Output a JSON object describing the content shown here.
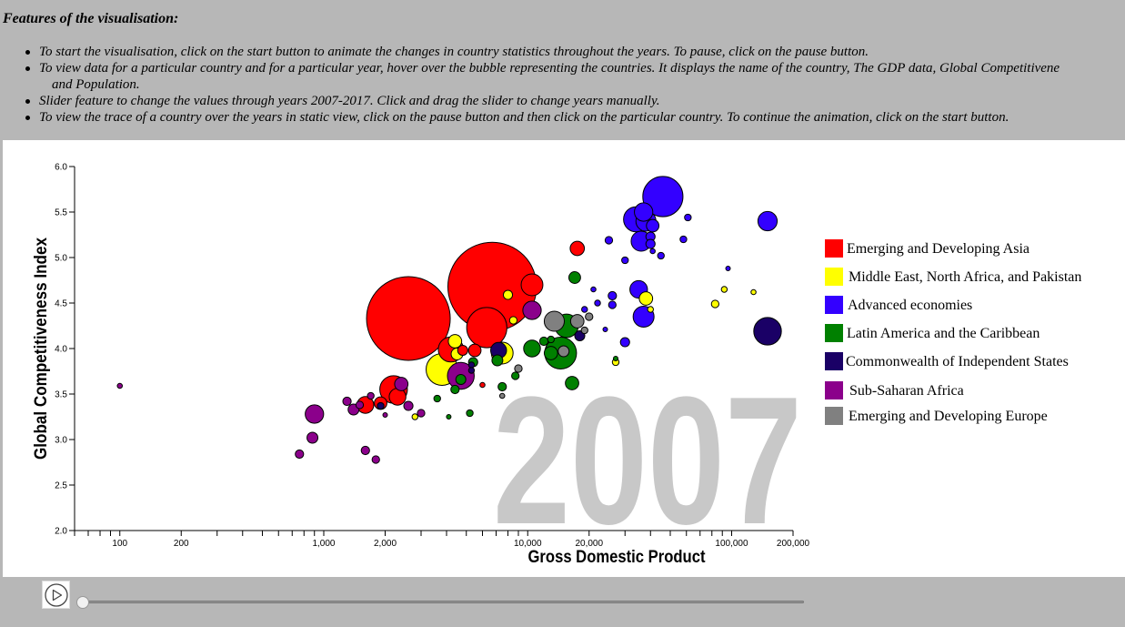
{
  "features": {
    "heading": "Features of the visualisation:",
    "items": [
      "To start the visualisation, click on the start button to animate the changes in country statistics throughout the years. To pause, click on the pause button.",
      "To view data for a particular country and for a particular year, hover over the bubble representing the countries. It displays the name of the country, The GDP data, Global Competitivene",
      "Slider feature to change the values through years 2007-2017. Click and drag the slider to change years manually.",
      "To view the trace of a country over the years in static view, click on the pause button and then click on the particular country. To continue the animation, click on the start button."
    ],
    "item2_continuation": "and Population."
  },
  "chart_data": {
    "type": "scatter",
    "year": "2007",
    "xlabel": "Gross Domestic Product",
    "ylabel": "Global Competitiveness Index",
    "x_scale": "log",
    "xlim": [
      60,
      200000
    ],
    "ylim": [
      2.0,
      6.0
    ],
    "x_tick_labels": [
      "100",
      "200",
      "1,000",
      "2,000",
      "10,000",
      "20,000",
      "100,000",
      "200,000"
    ],
    "x_tick_values": [
      100,
      200,
      1000,
      2000,
      10000,
      20000,
      100000,
      200000
    ],
    "y_tick_labels": [
      "2.0",
      "2.5",
      "3.0",
      "3.5",
      "4.0",
      "4.5",
      "5.0",
      "5.5",
      "6.0"
    ],
    "y_tick_values": [
      2.0,
      2.5,
      3.0,
      3.5,
      4.0,
      4.5,
      5.0,
      5.5,
      6.0
    ],
    "groups": [
      {
        "key": "asia",
        "name": "Emerging and Developing Asia",
        "color": "#ff0000"
      },
      {
        "key": "mena",
        "name": "Middle East, North Africa, and Pakistan",
        "color": "#ffff00"
      },
      {
        "key": "adv",
        "name": "Advanced economies",
        "color": "#3300ff"
      },
      {
        "key": "latam",
        "name": "Latin America and the Caribbean",
        "color": "#008000"
      },
      {
        "key": "cis",
        "name": "Commonwealth of Independent States",
        "color": "#1a0066"
      },
      {
        "key": "ssa",
        "name": "Sub-Saharan Africa",
        "color": "#8b008b"
      },
      {
        "key": "eur",
        "name": "Emerging and Developing Europe",
        "color": "#808080"
      }
    ],
    "points": [
      {
        "g": "asia",
        "x": 2600,
        "y": 4.33,
        "size": 1.0
      },
      {
        "g": "asia",
        "x": 6700,
        "y": 4.68,
        "size": 1.06
      },
      {
        "g": "asia",
        "x": 6300,
        "y": 4.23,
        "size": 0.48
      },
      {
        "g": "asia",
        "x": 4200,
        "y": 3.99,
        "size": 0.3
      },
      {
        "g": "asia",
        "x": 2200,
        "y": 3.55,
        "size": 0.33
      },
      {
        "g": "asia",
        "x": 2300,
        "y": 3.47,
        "size": 0.2
      },
      {
        "g": "asia",
        "x": 1600,
        "y": 3.38,
        "size": 0.2
      },
      {
        "g": "asia",
        "x": 1900,
        "y": 3.4,
        "size": 0.15
      },
      {
        "g": "asia",
        "x": 10500,
        "y": 4.7,
        "size": 0.26
      },
      {
        "g": "asia",
        "x": 17500,
        "y": 5.1,
        "size": 0.17
      },
      {
        "g": "asia",
        "x": 5500,
        "y": 3.98,
        "size": 0.15
      },
      {
        "g": "asia",
        "x": 6000,
        "y": 3.6,
        "size": 0.06
      },
      {
        "g": "asia",
        "x": 4800,
        "y": 3.98,
        "size": 0.12
      },
      {
        "g": "mena",
        "x": 3800,
        "y": 3.77,
        "size": 0.38
      },
      {
        "g": "mena",
        "x": 7500,
        "y": 3.95,
        "size": 0.26
      },
      {
        "g": "mena",
        "x": 4500,
        "y": 3.94,
        "size": 0.14
      },
      {
        "g": "mena",
        "x": 4400,
        "y": 4.08,
        "size": 0.16
      },
      {
        "g": "mena",
        "x": 8000,
        "y": 4.59,
        "size": 0.11
      },
      {
        "g": "mena",
        "x": 8500,
        "y": 4.31,
        "size": 0.09
      },
      {
        "g": "mena",
        "x": 38000,
        "y": 4.55,
        "size": 0.16
      },
      {
        "g": "mena",
        "x": 40000,
        "y": 4.43,
        "size": 0.07
      },
      {
        "g": "mena",
        "x": 83000,
        "y": 4.49,
        "size": 0.09
      },
      {
        "g": "mena",
        "x": 92000,
        "y": 4.65,
        "size": 0.07
      },
      {
        "g": "mena",
        "x": 128000,
        "y": 4.62,
        "size": 0.06
      },
      {
        "g": "mena",
        "x": 27000,
        "y": 3.85,
        "size": 0.08
      },
      {
        "g": "mena",
        "x": 2800,
        "y": 3.25,
        "size": 0.07
      },
      {
        "g": "adv",
        "x": 46000,
        "y": 5.67,
        "size": 0.48
      },
      {
        "g": "adv",
        "x": 34000,
        "y": 5.42,
        "size": 0.3
      },
      {
        "g": "adv",
        "x": 37000,
        "y": 5.5,
        "size": 0.22
      },
      {
        "g": "adv",
        "x": 38000,
        "y": 5.4,
        "size": 0.24
      },
      {
        "g": "adv",
        "x": 36000,
        "y": 5.18,
        "size": 0.24
      },
      {
        "g": "adv",
        "x": 35000,
        "y": 4.65,
        "size": 0.21
      },
      {
        "g": "adv",
        "x": 37000,
        "y": 4.35,
        "size": 0.25
      },
      {
        "g": "adv",
        "x": 150000,
        "y": 5.4,
        "size": 0.23
      },
      {
        "g": "adv",
        "x": 41000,
        "y": 5.35,
        "size": 0.15
      },
      {
        "g": "adv",
        "x": 40000,
        "y": 5.23,
        "size": 0.11
      },
      {
        "g": "adv",
        "x": 40000,
        "y": 5.15,
        "size": 0.11
      },
      {
        "g": "adv",
        "x": 61000,
        "y": 5.44,
        "size": 0.08
      },
      {
        "g": "adv",
        "x": 58000,
        "y": 5.2,
        "size": 0.08
      },
      {
        "g": "adv",
        "x": 45000,
        "y": 5.02,
        "size": 0.08
      },
      {
        "g": "adv",
        "x": 25000,
        "y": 5.19,
        "size": 0.09
      },
      {
        "g": "adv",
        "x": 30000,
        "y": 4.97,
        "size": 0.08
      },
      {
        "g": "adv",
        "x": 26000,
        "y": 4.58,
        "size": 0.1
      },
      {
        "g": "adv",
        "x": 26000,
        "y": 4.48,
        "size": 0.09
      },
      {
        "g": "adv",
        "x": 22000,
        "y": 4.5,
        "size": 0.07
      },
      {
        "g": "adv",
        "x": 21000,
        "y": 4.65,
        "size": 0.06
      },
      {
        "g": "adv",
        "x": 30000,
        "y": 4.07,
        "size": 0.11
      },
      {
        "g": "adv",
        "x": 41000,
        "y": 5.07,
        "size": 0.06
      },
      {
        "g": "adv",
        "x": 96000,
        "y": 4.88,
        "size": 0.05
      },
      {
        "g": "adv",
        "x": 19000,
        "y": 4.43,
        "size": 0.07
      },
      {
        "g": "adv",
        "x": 24000,
        "y": 4.21,
        "size": 0.05
      },
      {
        "g": "cis",
        "x": 150000,
        "y": 4.19,
        "size": 0.33
      },
      {
        "g": "cis",
        "x": 7200,
        "y": 3.98,
        "size": 0.19
      },
      {
        "g": "cis",
        "x": 18000,
        "y": 4.14,
        "size": 0.12
      },
      {
        "g": "cis",
        "x": 5300,
        "y": 3.82,
        "size": 0.07
      },
      {
        "g": "cis",
        "x": 5300,
        "y": 3.76,
        "size": 0.07
      },
      {
        "g": "cis",
        "x": 1900,
        "y": 3.37,
        "size": 0.08
      },
      {
        "g": "latam",
        "x": 14500,
        "y": 3.95,
        "size": 0.38
      },
      {
        "g": "latam",
        "x": 15500,
        "y": 4.25,
        "size": 0.28
      },
      {
        "g": "latam",
        "x": 10500,
        "y": 4.0,
        "size": 0.2
      },
      {
        "g": "latam",
        "x": 13000,
        "y": 3.95,
        "size": 0.16
      },
      {
        "g": "latam",
        "x": 17000,
        "y": 4.78,
        "size": 0.14
      },
      {
        "g": "latam",
        "x": 16500,
        "y": 3.62,
        "size": 0.16
      },
      {
        "g": "latam",
        "x": 7100,
        "y": 3.87,
        "size": 0.13
      },
      {
        "g": "latam",
        "x": 5400,
        "y": 3.85,
        "size": 0.11
      },
      {
        "g": "latam",
        "x": 4700,
        "y": 3.66,
        "size": 0.12
      },
      {
        "g": "latam",
        "x": 4400,
        "y": 3.55,
        "size": 0.1
      },
      {
        "g": "latam",
        "x": 7500,
        "y": 3.58,
        "size": 0.1
      },
      {
        "g": "latam",
        "x": 8700,
        "y": 3.7,
        "size": 0.09
      },
      {
        "g": "latam",
        "x": 3600,
        "y": 3.45,
        "size": 0.08
      },
      {
        "g": "latam",
        "x": 5200,
        "y": 3.29,
        "size": 0.08
      },
      {
        "g": "latam",
        "x": 12000,
        "y": 4.08,
        "size": 0.1
      },
      {
        "g": "latam",
        "x": 13000,
        "y": 4.1,
        "size": 0.08
      },
      {
        "g": "latam",
        "x": 27000,
        "y": 3.89,
        "size": 0.05
      },
      {
        "g": "latam",
        "x": 4100,
        "y": 3.25,
        "size": 0.05
      },
      {
        "g": "ssa",
        "x": 100,
        "y": 3.59,
        "size": 0.06
      },
      {
        "g": "ssa",
        "x": 900,
        "y": 3.28,
        "size": 0.22
      },
      {
        "g": "ssa",
        "x": 880,
        "y": 3.02,
        "size": 0.13
      },
      {
        "g": "ssa",
        "x": 760,
        "y": 2.84,
        "size": 0.1
      },
      {
        "g": "ssa",
        "x": 1600,
        "y": 2.88,
        "size": 0.1
      },
      {
        "g": "ssa",
        "x": 1800,
        "y": 2.78,
        "size": 0.09
      },
      {
        "g": "ssa",
        "x": 1400,
        "y": 3.33,
        "size": 0.13
      },
      {
        "g": "ssa",
        "x": 1300,
        "y": 3.42,
        "size": 0.1
      },
      {
        "g": "ssa",
        "x": 1500,
        "y": 3.38,
        "size": 0.09
      },
      {
        "g": "ssa",
        "x": 1700,
        "y": 3.48,
        "size": 0.08
      },
      {
        "g": "ssa",
        "x": 2400,
        "y": 3.61,
        "size": 0.16
      },
      {
        "g": "ssa",
        "x": 2600,
        "y": 3.37,
        "size": 0.11
      },
      {
        "g": "ssa",
        "x": 3000,
        "y": 3.29,
        "size": 0.09
      },
      {
        "g": "ssa",
        "x": 2000,
        "y": 3.27,
        "size": 0.05
      },
      {
        "g": "ssa",
        "x": 4700,
        "y": 3.7,
        "size": 0.32
      },
      {
        "g": "ssa",
        "x": 10500,
        "y": 4.42,
        "size": 0.22
      },
      {
        "g": "eur",
        "x": 13500,
        "y": 4.3,
        "size": 0.24
      },
      {
        "g": "eur",
        "x": 17500,
        "y": 4.3,
        "size": 0.16
      },
      {
        "g": "eur",
        "x": 15000,
        "y": 3.97,
        "size": 0.13
      },
      {
        "g": "eur",
        "x": 9000,
        "y": 3.78,
        "size": 0.09
      },
      {
        "g": "eur",
        "x": 19000,
        "y": 4.2,
        "size": 0.08
      },
      {
        "g": "eur",
        "x": 20000,
        "y": 4.35,
        "size": 0.09
      },
      {
        "g": "eur",
        "x": 7500,
        "y": 3.48,
        "size": 0.06
      }
    ]
  }
}
